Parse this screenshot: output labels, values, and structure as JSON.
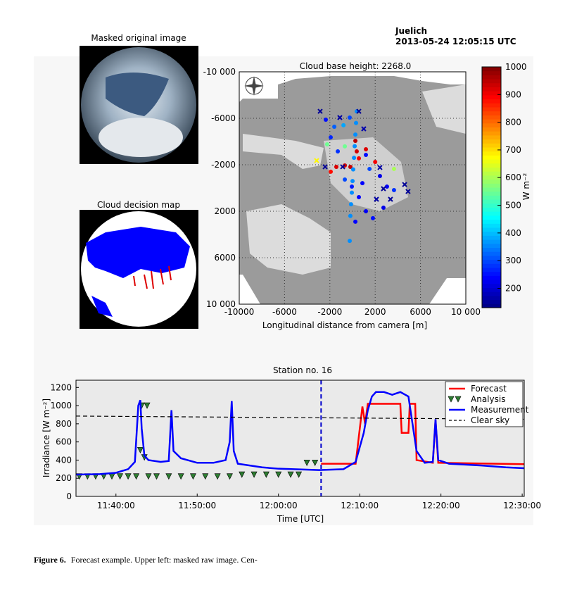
{
  "header": {
    "station": "Juelich",
    "timestamp": "2013-05-24 12:05:15 UTC"
  },
  "panels": {
    "masked_title": "Masked original image",
    "decision_title": "Cloud decision map"
  },
  "caption": {
    "label": "Figure 6.",
    "text": "Forecast example. Upper left: masked raw image. Cen-"
  },
  "chart_data": [
    {
      "type": "scatter",
      "title": "Cloud base height: 2268.0",
      "xlabel": "Longitudinal distance from camera [m]",
      "xlim": [
        -10000,
        10000
      ],
      "ylim": [
        10000,
        -10000
      ],
      "xticks": [
        {
          "value": -10000,
          "label": "-10000"
        },
        -6000,
        -2000,
        2000,
        6000,
        {
          "value": 10000,
          "label": "10 000"
        }
      ],
      "yticks": [
        {
          "value": -10000,
          "label": "-10 000"
        },
        -6000,
        -2000,
        2000,
        6000,
        {
          "value": 10000,
          "label": "10 000"
        }
      ],
      "grid": true,
      "colorbar": {
        "label": "W m⁻²",
        "clim": [
          130,
          1000
        ],
        "ticks": [
          200,
          300,
          400,
          500,
          600,
          700,
          800,
          900,
          1000
        ],
        "colormap": "jet"
      },
      "series": [
        {
          "marker": "o",
          "x": [
            -2360,
            -1610,
            -1925,
            -800,
            -250,
            -2240,
            -1300,
            1180,
            1500,
            2420,
            3040,
            -60,
            560,
            1180,
            1800,
            250,
            2730,
            3660,
            -680,
            870,
            3660,
            250,
            370,
            560,
            1180,
            -680,
            -190,
            2000,
            -1430,
            -680,
            -1925,
            370,
            310,
            250,
            190,
            130,
            60,
            0,
            -60,
            -130,
            -190,
            -250
          ],
          "y": [
            -5880,
            -5270,
            -4360,
            -5400,
            -6060,
            -3760,
            -3150,
            -2850,
            -1640,
            -1030,
            -120,
            -120,
            790,
            2000,
            2600,
            2900,
            1700,
            180,
            -730,
            -420,
            -1640,
            -4060,
            -3150,
            -2550,
            -3330,
            -1940,
            -1820,
            -2240,
            -1820,
            -3580,
            -1400,
            -6600,
            -5600,
            -4600,
            -3600,
            -2600,
            -1600,
            -600,
            400,
            1400,
            2400,
            4550
          ],
          "values": [
            250,
            320,
            270,
            380,
            300,
            550,
            280,
            250,
            300,
            220,
            230,
            260,
            240,
            230,
            250,
            240,
            220,
            280,
            300,
            240,
            600,
            950,
            930,
            900,
            920,
            930,
            940,
            900,
            920,
            550,
            880,
            360,
            360,
            360,
            360,
            360,
            360,
            360,
            360,
            360,
            360,
            360
          ]
        },
        {
          "marker": "x",
          "x": [
            -2860,
            -1120,
            560,
            990,
            -2420,
            -870,
            2420,
            2730,
            4600,
            4900,
            2110,
            3350,
            -3170
          ],
          "y": [
            -6600,
            -6060,
            -6600,
            -5090,
            -1820,
            -1820,
            -1760,
            60,
            -300,
            300,
            970,
            970,
            -2360
          ],
          "values": [
            150,
            160,
            150,
            170,
            150,
            150,
            160,
            150,
            150,
            150,
            160,
            150,
            680
          ]
        }
      ]
    },
    {
      "type": "line",
      "title": "Station no. 16",
      "xlabel": "Time [UTC]",
      "ylabel": "Irradiance [W m⁻²]",
      "xlim": [
        "11:35:05",
        "12:30:15"
      ],
      "ylim": [
        0,
        1280
      ],
      "xticks": [
        "11:40:00",
        "11:50:00",
        "12:00:00",
        "12:10:00",
        "12:20:00",
        "12:30:00"
      ],
      "yticks": [
        0,
        200,
        400,
        600,
        800,
        1000,
        1200
      ],
      "forecast_start": "12:05:15",
      "legend": "upper right",
      "series": [
        {
          "name": "Forecast",
          "color": "#ff0000",
          "style": "line",
          "x": [
            "12:05:15",
            "12:09:30",
            "12:10:20",
            "12:10:40",
            "12:11:00",
            "12:15:00",
            "12:15:10",
            "12:16:00",
            "12:16:10",
            "12:16:50",
            "12:17:00",
            "12:19:00",
            "12:19:20",
            "12:19:40",
            "12:30:15"
          ],
          "values": [
            360,
            360,
            990,
            800,
            1020,
            1020,
            700,
            700,
            1020,
            1020,
            400,
            370,
            840,
            370,
            355
          ]
        },
        {
          "name": "Analysis",
          "color": "#2e7d32",
          "style": "triangles",
          "x": [
            "11:35:30",
            "11:36:30",
            "11:37:30",
            "11:38:30",
            "11:39:30",
            "11:40:30",
            "11:41:30",
            "11:42:30",
            "11:43:00",
            "11:43:10",
            "11:43:30",
            "11:43:50",
            "11:44:00",
            "11:45:00",
            "11:46:30",
            "11:48:00",
            "11:49:30",
            "11:51:00",
            "11:52:30",
            "11:54:00",
            "11:55:30",
            "11:57:00",
            "11:58:30",
            "12:00:00",
            "12:01:30",
            "12:02:30",
            "12:03:30",
            "12:04:30"
          ],
          "values": [
            220,
            220,
            220,
            220,
            220,
            220,
            220,
            220,
            510,
            1000,
            430,
            1000,
            220,
            220,
            220,
            220,
            220,
            220,
            220,
            220,
            240,
            240,
            240,
            240,
            240,
            240,
            370,
            370
          ]
        },
        {
          "name": "Measurement",
          "color": "#0000ff",
          "style": "line",
          "x": [
            "11:35:05",
            "11:38:00",
            "11:40:00",
            "11:41:30",
            "11:42:20",
            "11:42:45",
            "11:43:00",
            "11:43:10",
            "11:43:30",
            "11:44:00",
            "11:45:30",
            "11:46:30",
            "11:46:50",
            "11:47:05",
            "11:48:00",
            "11:50:00",
            "11:52:00",
            "11:53:30",
            "11:54:00",
            "11:54:15",
            "11:54:30",
            "11:55:00",
            "11:58:00",
            "12:00:00",
            "12:05:00",
            "12:08:00",
            "12:09:30",
            "12:10:30",
            "12:11:00",
            "12:11:30",
            "12:12:00",
            "12:13:00",
            "12:14:00",
            "12:15:00",
            "12:16:00",
            "12:16:30",
            "12:17:00",
            "12:18:00",
            "12:19:00",
            "12:19:20",
            "12:19:40",
            "12:21:00",
            "12:25:00",
            "12:28:00",
            "12:30:15"
          ],
          "values": [
            240,
            245,
            260,
            300,
            380,
            1000,
            1060,
            750,
            450,
            400,
            380,
            390,
            950,
            500,
            420,
            370,
            370,
            400,
            600,
            1050,
            500,
            360,
            320,
            305,
            290,
            300,
            380,
            700,
            950,
            1100,
            1150,
            1150,
            1120,
            1150,
            1100,
            800,
            500,
            370,
            380,
            850,
            400,
            360,
            340,
            320,
            310
          ]
        },
        {
          "name": "Clear sky",
          "color": "#000000",
          "style": "dashed",
          "x": [
            "11:35:05",
            "12:30:15"
          ],
          "values": [
            885,
            850
          ]
        }
      ]
    }
  ]
}
